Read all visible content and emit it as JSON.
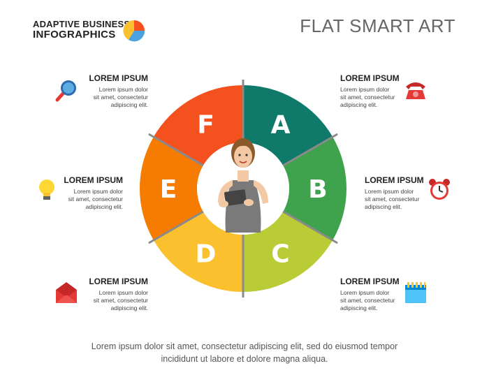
{
  "header": {
    "brand_line1": "ADAPTIVE BUSINESS",
    "brand_line2": "INFOGRAPHICS",
    "title": "FLAT SMART ART"
  },
  "wheel": {
    "segments": [
      {
        "letter": "A",
        "color": "#0f7a6a"
      },
      {
        "letter": "B",
        "color": "#3fa34d"
      },
      {
        "letter": "C",
        "color": "#b9cc35"
      },
      {
        "letter": "D",
        "color": "#fbc02d"
      },
      {
        "letter": "E",
        "color": "#f57c00"
      },
      {
        "letter": "F",
        "color": "#f4511e"
      }
    ]
  },
  "items": {
    "top_left": {
      "heading": "LOREM IPSUM",
      "line1": "Lorem ipsum dolor",
      "line2": "sit amet, consectetur",
      "line3": "adipiscing elit.",
      "icon": "magnifier-icon"
    },
    "mid_left": {
      "heading": "LOREM IPSUM",
      "line1": "Lorem ipsum dolor",
      "line2": "sit amet, consectetur",
      "line3": "adipiscing elit.",
      "icon": "lightbulb-icon"
    },
    "bottom_left": {
      "heading": "LOREM IPSUM",
      "line1": "Lorem ipsum dolor",
      "line2": "sit amet, consectetur",
      "line3": "adipiscing elit.",
      "icon": "envelope-icon"
    },
    "top_right": {
      "heading": "LOREM IPSUM",
      "line1": "Lorem ipsum dolor",
      "line2": "sit amet, consectetur",
      "line3": "adipiscing elit.",
      "icon": "telephone-icon"
    },
    "mid_right": {
      "heading": "LOREM IPSUM",
      "line1": "Lorem ipsum dolor",
      "line2": "sit amet, consectetur",
      "line3": "adipiscing elit.",
      "icon": "alarm-clock-icon"
    },
    "bottom_right": {
      "heading": "LOREM IPSUM",
      "line1": "Lorem ipsum dolor",
      "line2": "sit amet, consectetur",
      "line3": "adipiscing elit.",
      "icon": "calendar-icon"
    }
  },
  "footer": {
    "line1": "Lorem ipsum dolor sit amet, consectetur adipiscing elit, sed do eiusmod tempor",
    "line2": "incididunt ut labore et dolore magna aliqua."
  }
}
